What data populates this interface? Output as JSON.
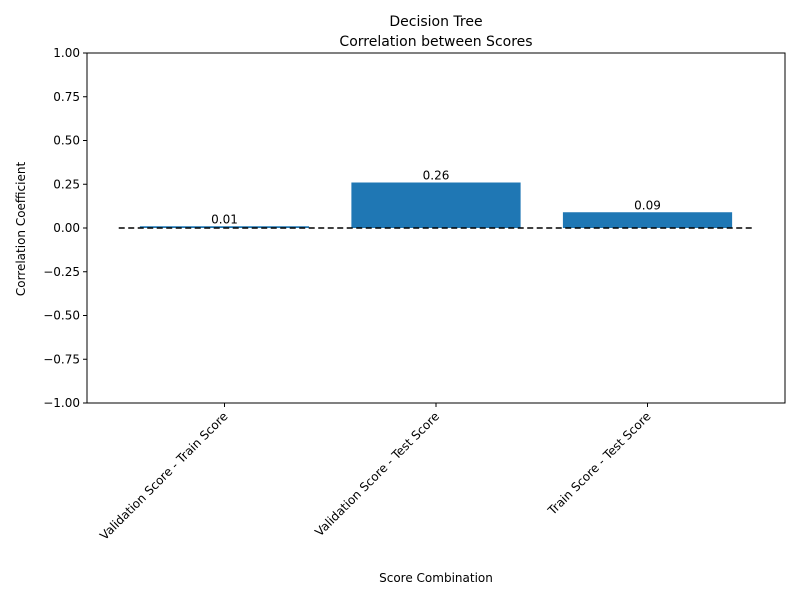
{
  "chart_data": {
    "type": "bar",
    "title": "Decision Tree",
    "subtitle": "Correlation between Scores",
    "xlabel": "Score Combination",
    "ylabel": "Correlation Coefficient",
    "categories": [
      "Validation Score - Train Score",
      "Validation Score - Test Score",
      "Train Score - Test Score"
    ],
    "values": [
      0.01,
      0.26,
      0.09
    ],
    "data_labels": [
      "0.01",
      "0.26",
      "0.09"
    ],
    "ylim": [
      -1.0,
      1.0
    ],
    "yticks": [
      -1.0,
      -0.75,
      -0.5,
      -0.25,
      0.0,
      0.25,
      0.5,
      0.75,
      1.0
    ],
    "ytick_labels": [
      "−1.00",
      "−0.75",
      "−0.50",
      "−0.25",
      "0.00",
      "0.25",
      "0.50",
      "0.75",
      "1.00"
    ],
    "reference_line": {
      "y": 0,
      "style": "dashed",
      "color": "#000000"
    },
    "bar_color": "#1f77b4",
    "grid": false,
    "legend": "none"
  }
}
